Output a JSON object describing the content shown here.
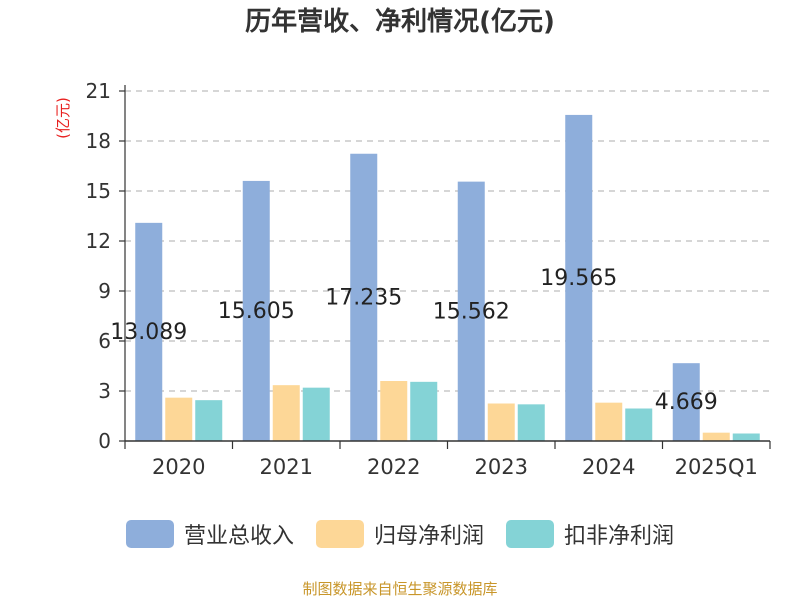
{
  "chart_data": {
    "type": "bar",
    "title": "历年营收、净利情况(亿元)",
    "ylabel": "(亿元)",
    "xlabel": "",
    "categories": [
      "2020",
      "2021",
      "2022",
      "2023",
      "2024",
      "2025Q1"
    ],
    "ylim": [
      0,
      21
    ],
    "yticks": [
      0,
      3,
      6,
      9,
      12,
      15,
      18,
      21
    ],
    "grid": true,
    "legend_position": "bottom",
    "series": [
      {
        "name": "营业总收入",
        "color": "#8eaedb",
        "values": [
          13.089,
          15.605,
          17.235,
          15.562,
          19.565,
          4.669
        ],
        "show_labels": true
      },
      {
        "name": "归母净利润",
        "color": "#fdd797",
        "values": [
          2.6,
          3.35,
          3.6,
          2.25,
          2.3,
          0.5
        ],
        "show_labels": false
      },
      {
        "name": "扣非净利润",
        "color": "#84d3d6",
        "values": [
          2.45,
          3.2,
          3.55,
          2.2,
          1.95,
          0.45
        ],
        "show_labels": false
      }
    ],
    "source": "制图数据来自恒生聚源数据库"
  }
}
